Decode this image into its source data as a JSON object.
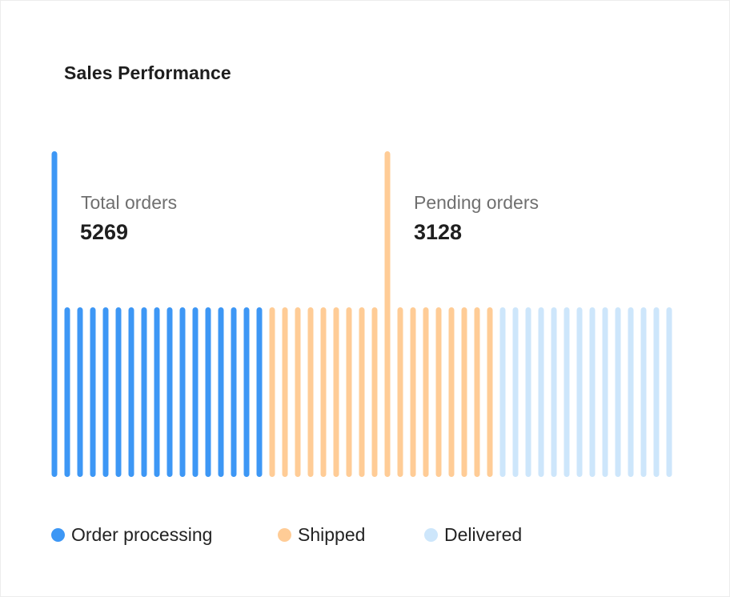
{
  "colors": {
    "order_processing": "#3d97f5",
    "shipped": "#ffcc96",
    "delivered": "#cde6fb"
  },
  "summary": {
    "total_orders_label": "Total orders",
    "total_orders_value": "5269",
    "pending_orders_label": "Pending orders",
    "pending_orders_value": "3128"
  },
  "chart_data": {
    "type": "bar",
    "title": "Sales Performance",
    "series": [
      {
        "name": "Order processing",
        "color": "#3d97f5",
        "values": [
          1.92,
          1,
          1,
          1,
          1,
          1,
          1,
          1,
          1,
          1,
          1,
          1,
          1,
          1,
          1,
          1,
          1
        ]
      },
      {
        "name": "Shipped",
        "color": "#ffcc96",
        "values": [
          1,
          1,
          1,
          1,
          1,
          1,
          1,
          1,
          1,
          1.92,
          1,
          1,
          1,
          1,
          1,
          1,
          1,
          1
        ]
      },
      {
        "name": "Delivered",
        "color": "#cde6fb",
        "values": [
          1,
          1,
          1,
          1,
          1,
          1,
          1,
          1,
          1,
          1,
          1,
          1,
          1,
          1
        ]
      }
    ],
    "legend": {
      "placement": "bottom-left",
      "entries": [
        "Order processing",
        "Shipped",
        "Delivered"
      ]
    },
    "grid": false
  }
}
